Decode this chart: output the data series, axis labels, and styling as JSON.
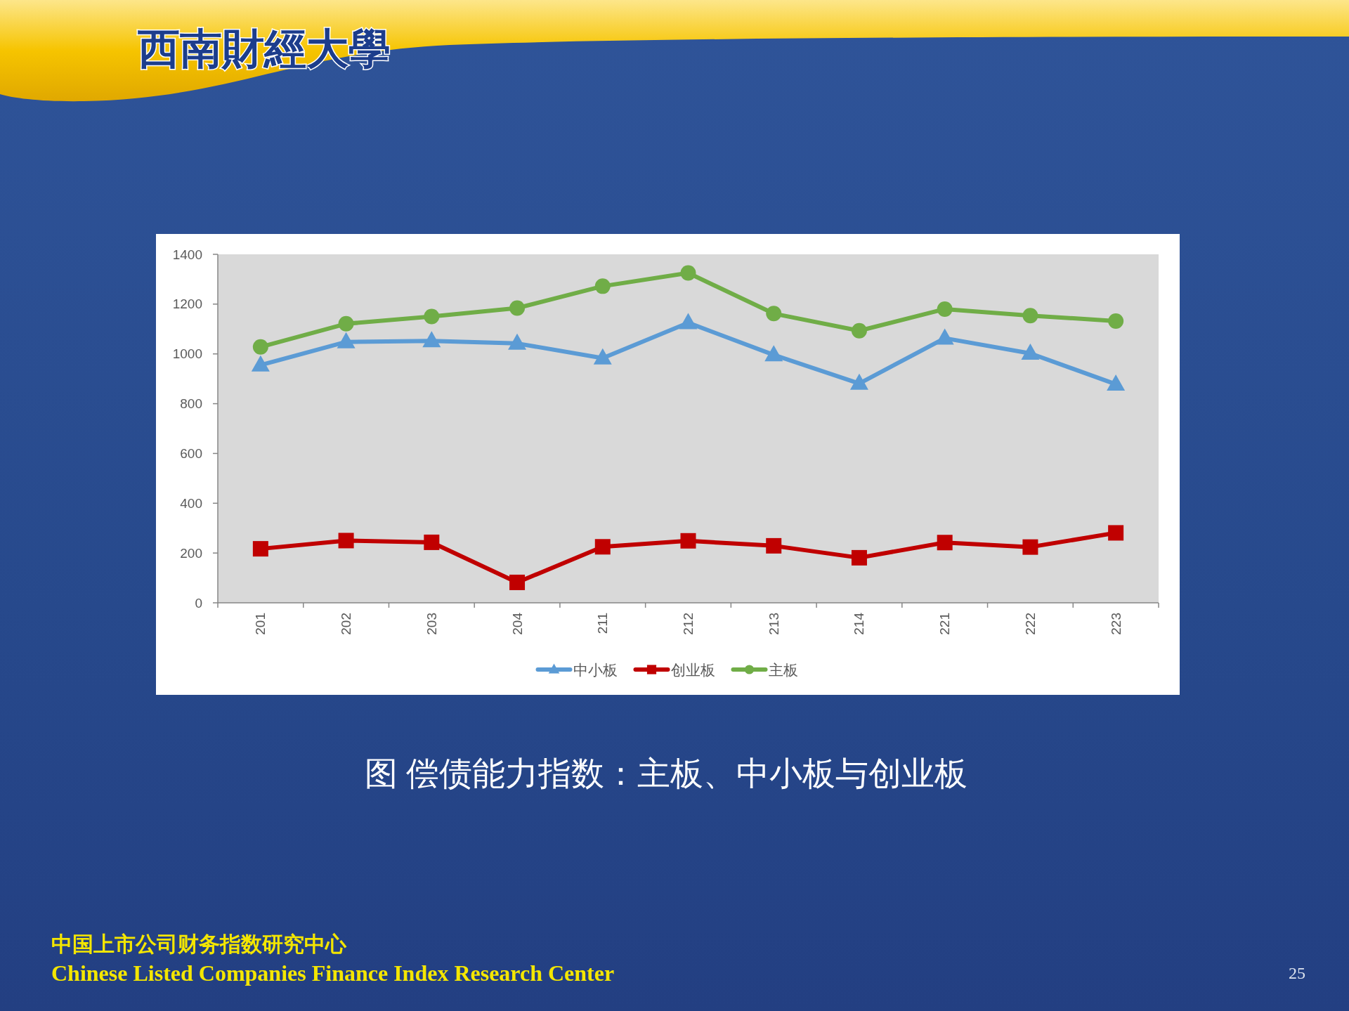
{
  "chart_data": {
    "type": "line",
    "title": "图 偿债能力指数：主板、中小板与创业板",
    "categories": [
      "201",
      "202",
      "203",
      "204",
      "211",
      "212",
      "213",
      "214",
      "221",
      "222",
      "223"
    ],
    "series": [
      {
        "name": "中小板",
        "color": "#5b9bd5",
        "marker": "triangle",
        "values": [
          955,
          1048,
          1052,
          1042,
          983,
          1125,
          996,
          881,
          1063,
          1002,
          878
        ]
      },
      {
        "name": "创业板",
        "color": "#c00000",
        "marker": "square",
        "values": [
          217,
          250,
          243,
          82,
          225,
          249,
          229,
          181,
          242,
          224,
          281
        ]
      },
      {
        "name": "主板",
        "color": "#70ad47",
        "marker": "circle",
        "values": [
          1028,
          1121,
          1150,
          1184,
          1272,
          1325,
          1162,
          1093,
          1180,
          1154,
          1132
        ]
      }
    ],
    "ylim": [
      0,
      1400
    ],
    "yticks": [
      0,
      200,
      400,
      600,
      800,
      1000,
      1200,
      1400
    ],
    "legend": "bottom",
    "annotations": [
      "西南財經大學",
      "中国上市公司财务指数研究中心",
      "Chinese Listed Companies Finance Index Research Center",
      "25"
    ]
  }
}
